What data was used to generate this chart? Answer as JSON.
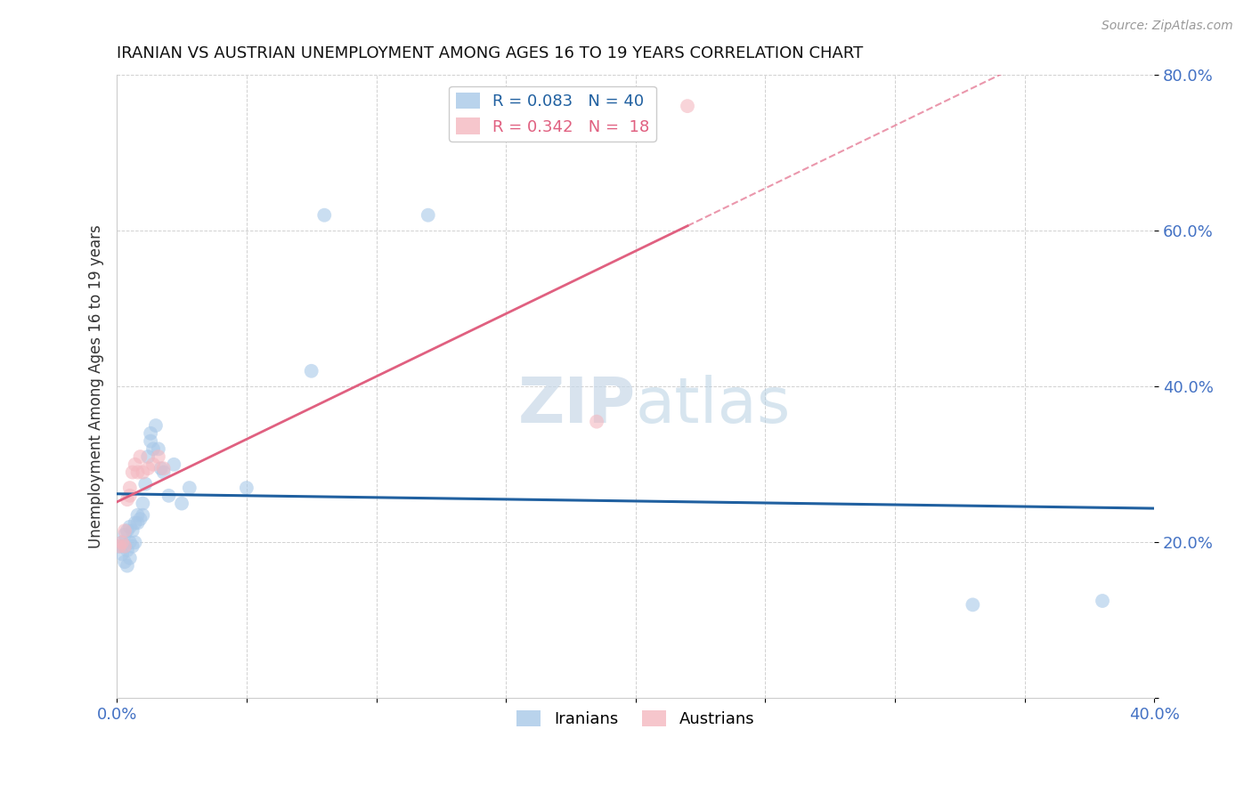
{
  "title": "IRANIAN VS AUSTRIAN UNEMPLOYMENT AMONG AGES 16 TO 19 YEARS CORRELATION CHART",
  "source": "Source: ZipAtlas.com",
  "ylabel": "Unemployment Among Ages 16 to 19 years",
  "xlim": [
    0.0,
    0.4
  ],
  "ylim": [
    0.0,
    0.8
  ],
  "xtick_positions": [
    0.0,
    0.05,
    0.1,
    0.15,
    0.2,
    0.25,
    0.3,
    0.35,
    0.4
  ],
  "ytick_positions": [
    0.0,
    0.2,
    0.4,
    0.6,
    0.8
  ],
  "xticklabels": [
    "0.0%",
    "",
    "",
    "",
    "",
    "",
    "",
    "",
    "40.0%"
  ],
  "yticklabels": [
    "",
    "20.0%",
    "40.0%",
    "60.0%",
    "80.0%"
  ],
  "iranians_x": [
    0.001,
    0.002,
    0.002,
    0.003,
    0.003,
    0.003,
    0.004,
    0.004,
    0.004,
    0.005,
    0.005,
    0.005,
    0.006,
    0.006,
    0.007,
    0.007,
    0.008,
    0.008,
    0.009,
    0.01,
    0.01,
    0.011,
    0.012,
    0.013,
    0.013,
    0.014,
    0.015,
    0.016,
    0.017,
    0.018,
    0.02,
    0.022,
    0.025,
    0.028,
    0.05,
    0.075,
    0.08,
    0.12,
    0.33,
    0.38
  ],
  "iranians_y": [
    0.195,
    0.185,
    0.2,
    0.175,
    0.195,
    0.21,
    0.17,
    0.19,
    0.215,
    0.18,
    0.2,
    0.22,
    0.195,
    0.215,
    0.2,
    0.225,
    0.225,
    0.235,
    0.23,
    0.235,
    0.25,
    0.275,
    0.31,
    0.33,
    0.34,
    0.32,
    0.35,
    0.32,
    0.295,
    0.29,
    0.26,
    0.3,
    0.25,
    0.27,
    0.27,
    0.42,
    0.62,
    0.62,
    0.12,
    0.125
  ],
  "austrians_x": [
    0.001,
    0.002,
    0.003,
    0.003,
    0.004,
    0.005,
    0.005,
    0.006,
    0.007,
    0.008,
    0.009,
    0.01,
    0.012,
    0.014,
    0.016,
    0.018,
    0.185,
    0.22
  ],
  "austrians_y": [
    0.195,
    0.2,
    0.195,
    0.215,
    0.255,
    0.26,
    0.27,
    0.29,
    0.3,
    0.29,
    0.31,
    0.29,
    0.295,
    0.3,
    0.31,
    0.295,
    0.355,
    0.76
  ],
  "iranian_R": 0.083,
  "iranian_N": 40,
  "austrian_R": 0.342,
  "austrian_N": 18,
  "iranian_color": "#a8c8e8",
  "austrian_color": "#f4b8c0",
  "iranian_line_color": "#2060a0",
  "austrian_line_color": "#e06080",
  "watermark_zip": "ZIP",
  "watermark_atlas": "atlas",
  "background_color": "#ffffff",
  "tick_color": "#4472c4",
  "grid_color": "#cccccc",
  "title_color": "#111111",
  "ylabel_color": "#333333"
}
